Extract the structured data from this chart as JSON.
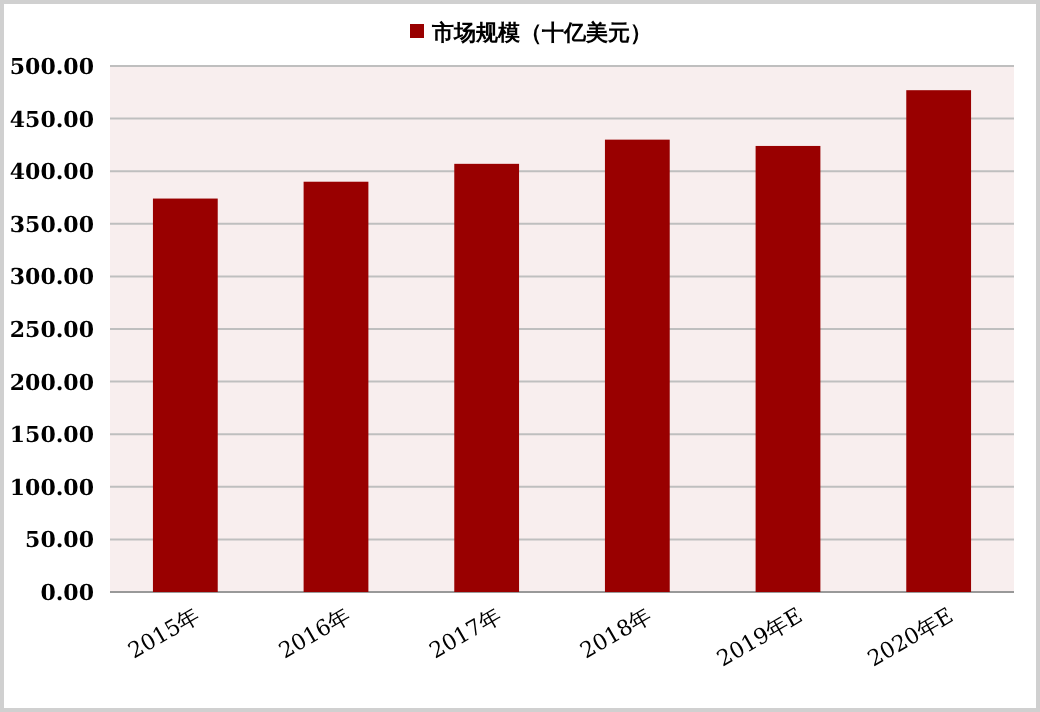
{
  "chart_data": {
    "type": "bar",
    "categories": [
      "2015年",
      "2016年",
      "2017年",
      "2018年",
      "2019年E",
      "2020年E"
    ],
    "series": [
      {
        "name": "市场规模（十亿美元）",
        "color": "#990000",
        "values": [
          374,
          390,
          407,
          430,
          424,
          477
        ]
      }
    ],
    "ylim": [
      0,
      500
    ],
    "yticks": [
      {
        "value": 0,
        "label": "0.00"
      },
      {
        "value": 50,
        "label": "50.00"
      },
      {
        "value": 100,
        "label": "100.00"
      },
      {
        "value": 150,
        "label": "150.00"
      },
      {
        "value": 200,
        "label": "200.00"
      },
      {
        "value": 250,
        "label": "250.00"
      },
      {
        "value": 300,
        "label": "300.00"
      },
      {
        "value": 350,
        "label": "350.00"
      },
      {
        "value": 400,
        "label": "400.00"
      },
      {
        "value": 450,
        "label": "450.00"
      },
      {
        "value": 500,
        "label": "500.00"
      }
    ],
    "grid": "y",
    "legend": "top"
  }
}
